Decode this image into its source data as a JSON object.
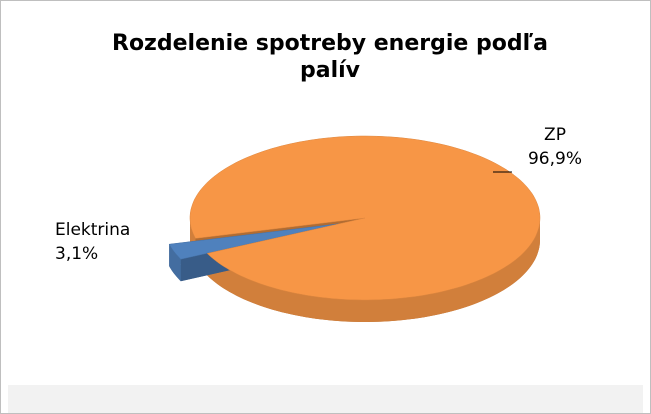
{
  "chart_data": {
    "type": "pie",
    "title": "Rozdelenie spotreby energie podľa palív",
    "categories": [
      "Elektrina",
      "ZP"
    ],
    "values": [
      3.1,
      96.9
    ],
    "value_labels": [
      "3,1%",
      "96,9%"
    ],
    "colors": [
      "#4f81bd",
      "#f79646"
    ]
  }
}
